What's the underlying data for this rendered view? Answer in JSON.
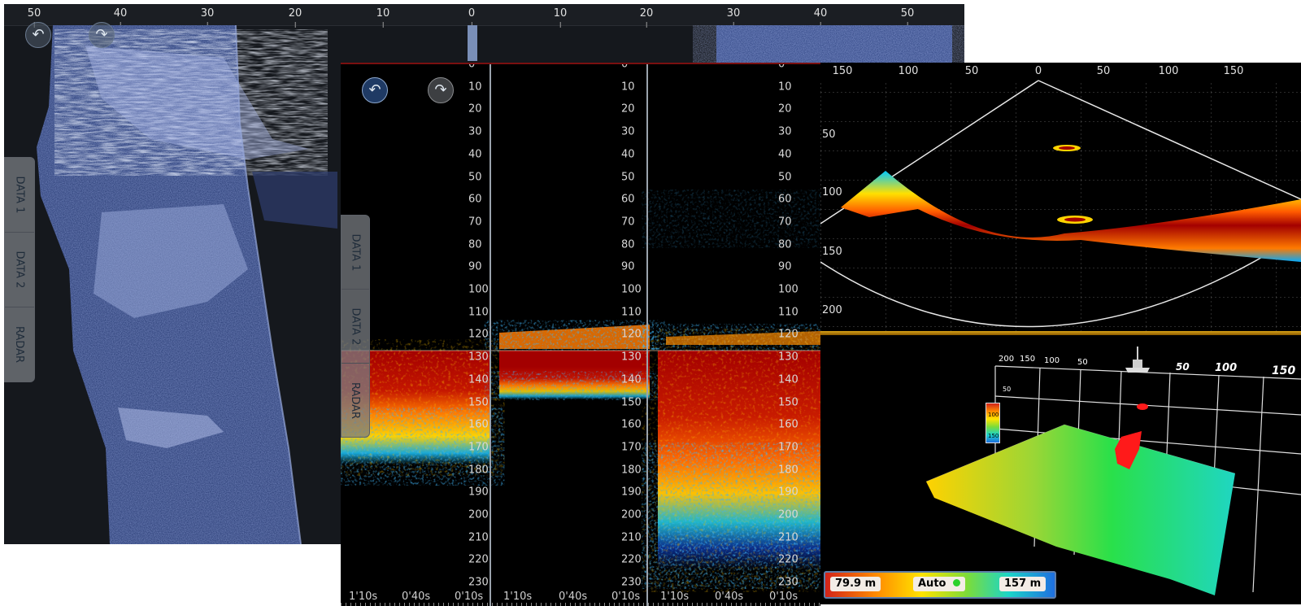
{
  "back_window": {
    "range_ticks": [
      "50",
      "40",
      "30",
      "20",
      "10",
      "0",
      "10",
      "20",
      "30",
      "40",
      "50"
    ],
    "undo_icon": "undo-arrow-icon",
    "redo_icon": "redo-arrow-icon",
    "tabs": [
      "DATA 1",
      "DATA 2",
      "RADAR"
    ]
  },
  "echogram": {
    "tabs": [
      "DATA 1",
      "DATA 2",
      "RADAR"
    ],
    "undo_icon": "undo-arrow-icon",
    "redo_icon": "redo-arrow-icon",
    "depth_labels": [
      "0",
      "10",
      "20",
      "30",
      "40",
      "50",
      "60",
      "70",
      "80",
      "90",
      "100",
      "110",
      "120",
      "130",
      "140",
      "150",
      "160",
      "170",
      "180",
      "190",
      "200",
      "210",
      "220",
      "230"
    ],
    "panels": [
      {
        "time_labels": [
          "1'10s",
          "0'40s",
          "0'10s"
        ]
      },
      {
        "time_labels": [
          "1'10s",
          "0'40s",
          "0'10s"
        ]
      },
      {
        "time_labels": [
          "1'10s",
          "0'40s",
          "0'10s"
        ]
      }
    ],
    "colors": {
      "strong": "#a30000",
      "medium": "#ff7a00",
      "weak": "#17a9d8",
      "faint": "#0a2d8a"
    }
  },
  "sector_view": {
    "range_ticks": [
      "150",
      "100",
      "50",
      "0",
      "50",
      "100",
      "150"
    ],
    "depth_labels": [
      "50",
      "100",
      "150",
      "200"
    ]
  },
  "view_3d": {
    "axis_labels_small": [
      "200",
      "150",
      "100",
      "50"
    ],
    "axis_labels_big": [
      "50",
      "100",
      "150"
    ],
    "side_labels": [
      "50",
      "100",
      "150"
    ],
    "legend_labels": [
      "50",
      "100",
      "150"
    ]
  },
  "status_bar": {
    "min_depth": "79.9 m",
    "mode": "Auto",
    "max_depth": "157 m"
  }
}
